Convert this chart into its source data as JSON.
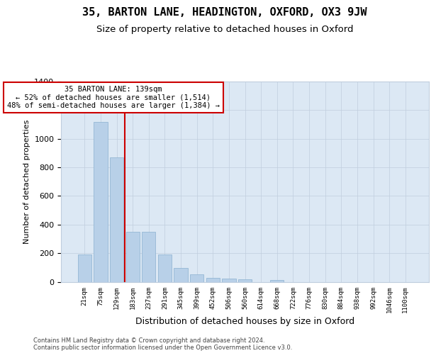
{
  "title1": "35, BARTON LANE, HEADINGTON, OXFORD, OX3 9JW",
  "title2": "Size of property relative to detached houses in Oxford",
  "xlabel": "Distribution of detached houses by size in Oxford",
  "ylabel": "Number of detached properties",
  "categories": [
    "21sqm",
    "75sqm",
    "129sqm",
    "183sqm",
    "237sqm",
    "291sqm",
    "345sqm",
    "399sqm",
    "452sqm",
    "506sqm",
    "560sqm",
    "614sqm",
    "668sqm",
    "722sqm",
    "776sqm",
    "830sqm",
    "884sqm",
    "938sqm",
    "992sqm",
    "1046sqm",
    "1100sqm"
  ],
  "values": [
    190,
    1120,
    870,
    350,
    350,
    190,
    95,
    52,
    25,
    22,
    18,
    0,
    12,
    0,
    0,
    0,
    0,
    0,
    0,
    0,
    0
  ],
  "bar_color": "#b8d0e8",
  "bar_edge_color": "#8ab0d0",
  "vline_position": 2.5,
  "vline_color": "#cc0000",
  "annotation_text": "35 BARTON LANE: 139sqm\n← 52% of detached houses are smaller (1,514)\n48% of semi-detached houses are larger (1,384) →",
  "ylim_max": 1400,
  "yticks": [
    0,
    200,
    400,
    600,
    800,
    1000,
    1200,
    1400
  ],
  "plot_bg_color": "#dce8f4",
  "grid_color": "#c0cede",
  "footer_line1": "Contains HM Land Registry data © Crown copyright and database right 2024.",
  "footer_line2": "Contains public sector information licensed under the Open Government Licence v3.0."
}
